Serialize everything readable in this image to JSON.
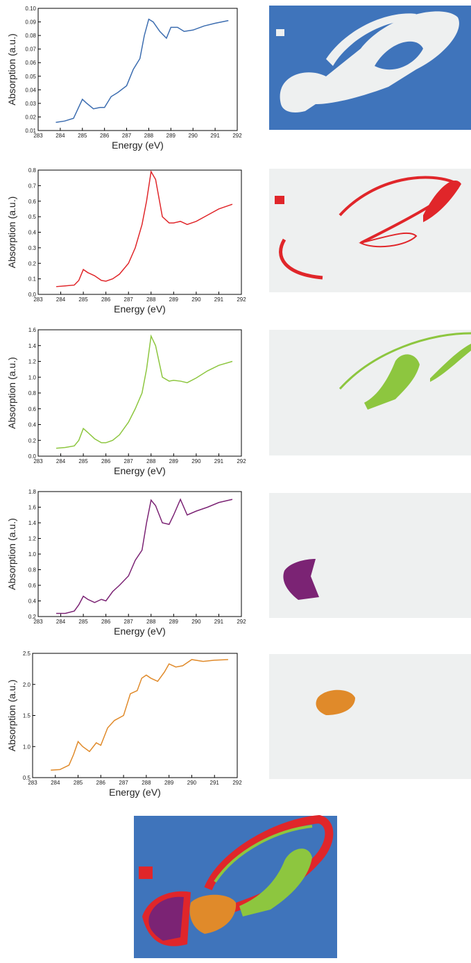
{
  "chart_data": [
    {
      "type": "line",
      "color": "#3c6db0",
      "xlabel": "Energy (eV)",
      "ylabel": "Absorption (a.u.)",
      "x": [
        283.8,
        284.2,
        284.6,
        284.8,
        285.0,
        285.2,
        285.5,
        285.8,
        286.0,
        286.3,
        286.6,
        287.0,
        287.3,
        287.6,
        287.8,
        288.0,
        288.2,
        288.5,
        288.8,
        289.0,
        289.3,
        289.6,
        290.0,
        290.5,
        291.0,
        291.6
      ],
      "values": [
        0.016,
        0.017,
        0.019,
        0.026,
        0.033,
        0.03,
        0.026,
        0.027,
        0.027,
        0.035,
        0.038,
        0.043,
        0.055,
        0.063,
        0.08,
        0.092,
        0.09,
        0.083,
        0.078,
        0.086,
        0.086,
        0.083,
        0.084,
        0.087,
        0.089,
        0.091
      ],
      "xlim": [
        283,
        292
      ],
      "xticks": [
        283,
        284,
        285,
        286,
        287,
        288,
        289,
        290,
        291,
        292
      ],
      "ylim": [
        0.01,
        0.1
      ],
      "yticks": [
        0.01,
        0.02,
        0.03,
        0.04,
        0.05,
        0.06,
        0.07,
        0.08,
        0.09,
        {
          "value": 0.1,
          "label": "0.10"
        }
      ]
    },
    {
      "type": "line",
      "color": "#e0262a",
      "xlabel": "Energy (eV)",
      "ylabel": "Absorption (a.u.)",
      "x": [
        283.8,
        284.2,
        284.6,
        284.8,
        285.0,
        285.2,
        285.5,
        285.8,
        286.0,
        286.3,
        286.6,
        287.0,
        287.3,
        287.6,
        287.8,
        288.0,
        288.2,
        288.5,
        288.8,
        289.0,
        289.3,
        289.6,
        290.0,
        290.5,
        291.0,
        291.6
      ],
      "values": [
        0.05,
        0.055,
        0.06,
        0.09,
        0.16,
        0.14,
        0.12,
        0.09,
        0.085,
        0.1,
        0.13,
        0.2,
        0.3,
        0.45,
        0.6,
        0.79,
        0.74,
        0.5,
        0.46,
        0.46,
        0.47,
        0.45,
        0.47,
        0.51,
        0.55,
        0.58
      ],
      "xlim": [
        283,
        292
      ],
      "xticks": [
        283,
        284,
        285,
        286,
        287,
        288,
        289,
        290,
        291,
        292
      ],
      "ylim": [
        0,
        0.8
      ],
      "yticks": [
        {
          "value": 0,
          "label": "0.0"
        },
        0.1,
        0.2,
        0.3,
        0.4,
        0.5,
        0.6,
        0.7,
        0.8
      ]
    },
    {
      "type": "line",
      "color": "#8dc63f",
      "xlabel": "Energy (eV)",
      "ylabel": "Absorption (a.u.)",
      "x": [
        283.8,
        284.2,
        284.6,
        284.8,
        285.0,
        285.2,
        285.5,
        285.8,
        286.0,
        286.3,
        286.6,
        287.0,
        287.3,
        287.6,
        287.8,
        288.0,
        288.2,
        288.5,
        288.8,
        289.0,
        289.3,
        289.6,
        290.0,
        290.5,
        291.0,
        291.6
      ],
      "values": [
        0.1,
        0.11,
        0.13,
        0.2,
        0.35,
        0.3,
        0.22,
        0.17,
        0.17,
        0.2,
        0.27,
        0.43,
        0.6,
        0.8,
        1.1,
        1.52,
        1.4,
        1.0,
        0.95,
        0.96,
        0.95,
        0.93,
        0.99,
        1.08,
        1.15,
        1.2
      ],
      "xlim": [
        283,
        292
      ],
      "xticks": [
        283,
        284,
        285,
        286,
        287,
        288,
        289,
        290,
        291,
        292
      ],
      "ylim": [
        0,
        1.6
      ],
      "yticks": [
        {
          "value": 0,
          "label": "0.0"
        },
        0.2,
        0.4,
        0.6,
        0.8,
        {
          "value": 1,
          "label": "1.0"
        },
        1.2,
        1.4,
        1.6
      ]
    },
    {
      "type": "line",
      "color": "#7b2374",
      "xlabel": "Energy (eV)",
      "ylabel": "Absorption (a.u.)",
      "x": [
        283.8,
        284.2,
        284.6,
        284.8,
        285.0,
        285.2,
        285.5,
        285.8,
        286.0,
        286.3,
        286.6,
        287.0,
        287.3,
        287.6,
        287.8,
        288.0,
        288.2,
        288.5,
        288.8,
        289.0,
        289.3,
        289.6,
        290.0,
        290.5,
        291.0,
        291.6
      ],
      "values": [
        0.24,
        0.24,
        0.27,
        0.35,
        0.46,
        0.42,
        0.38,
        0.42,
        0.4,
        0.52,
        0.6,
        0.72,
        0.92,
        1.05,
        1.4,
        1.69,
        1.62,
        1.4,
        1.38,
        1.5,
        1.7,
        1.5,
        1.55,
        1.6,
        1.66,
        1.7
      ],
      "xlim": [
        283,
        292
      ],
      "xticks": [
        283,
        284,
        285,
        286,
        287,
        288,
        289,
        290,
        291,
        292
      ],
      "ylim": [
        0.2,
        1.8
      ],
      "yticks": [
        0.2,
        0.4,
        0.6,
        0.8,
        {
          "value": 1,
          "label": "1.0"
        },
        1.2,
        1.4,
        1.6,
        1.8
      ]
    },
    {
      "type": "line",
      "color": "#e08a2a",
      "xlabel": "Energy (eV)",
      "ylabel": "Absorption (a.u.)",
      "x": [
        283.8,
        284.2,
        284.6,
        284.8,
        285.0,
        285.2,
        285.5,
        285.8,
        286.0,
        286.3,
        286.6,
        287.0,
        287.3,
        287.6,
        287.8,
        288.0,
        288.2,
        288.5,
        288.8,
        289.0,
        289.3,
        289.6,
        290.0,
        290.5,
        291.0,
        291.6
      ],
      "values": [
        0.62,
        0.63,
        0.7,
        0.87,
        1.08,
        1.0,
        0.92,
        1.06,
        1.02,
        1.3,
        1.42,
        1.5,
        1.85,
        1.9,
        2.1,
        2.15,
        2.1,
        2.05,
        2.2,
        2.33,
        2.28,
        2.3,
        2.4,
        2.37,
        2.39,
        2.4
      ],
      "xlim": [
        283,
        292
      ],
      "xticks": [
        283,
        284,
        285,
        286,
        287,
        288,
        289,
        290,
        291,
        292
      ],
      "ylim": [
        0.5,
        2.5
      ],
      "yticks": [
        0.5,
        {
          "value": 1,
          "label": "1.0"
        },
        1.5,
        {
          "value": 2,
          "label": "2.0"
        },
        2.5
      ]
    }
  ]
}
